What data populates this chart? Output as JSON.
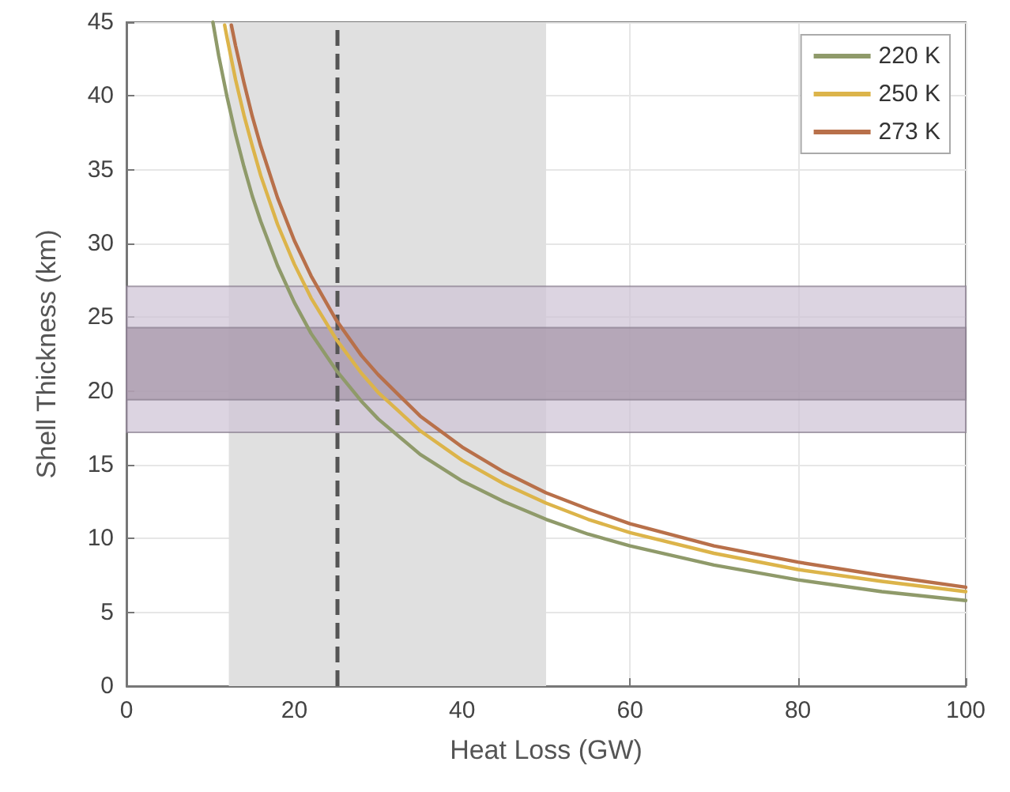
{
  "chart_data": {
    "type": "line",
    "xlabel": "Heat Loss (GW)",
    "ylabel": "Shell Thickness (km)",
    "xlim": [
      0,
      100
    ],
    "xticks": [
      0,
      20,
      40,
      60,
      80,
      100
    ],
    "ylim": [
      0,
      45
    ],
    "yticks": [
      0,
      5,
      10,
      15,
      20,
      25,
      30,
      35,
      40,
      45
    ],
    "grid": true,
    "legend": "top right",
    "marker": "none",
    "line_style": "solid",
    "series": [
      {
        "name": "220 K",
        "color": "#8f9a6a",
        "x": [
          10.3,
          11,
          12,
          13,
          14,
          15,
          16,
          18,
          20,
          22,
          25,
          28,
          30,
          35,
          40,
          45,
          50,
          55,
          60,
          70,
          80,
          90,
          100
        ],
        "values": [
          45.0,
          42.7,
          39.9,
          37.4,
          35.2,
          33.2,
          31.5,
          28.5,
          26.0,
          23.9,
          21.4,
          19.3,
          18.1,
          15.7,
          13.9,
          12.5,
          11.3,
          10.3,
          9.5,
          8.2,
          7.2,
          6.4,
          5.8
        ]
      },
      {
        "name": "250 K",
        "color": "#dcb44a",
        "x": [
          11.7,
          12,
          13,
          14,
          15,
          16,
          18,
          20,
          22,
          25,
          28,
          30,
          35,
          40,
          45,
          50,
          55,
          60,
          70,
          80,
          90,
          100
        ],
        "values": [
          44.8,
          43.9,
          41.1,
          38.7,
          36.6,
          34.6,
          31.3,
          28.6,
          26.3,
          23.5,
          21.2,
          19.9,
          17.3,
          15.3,
          13.7,
          12.4,
          11.3,
          10.4,
          9.0,
          7.9,
          7.1,
          6.4
        ]
      },
      {
        "name": "273 K",
        "color": "#b8704a",
        "x": [
          12.5,
          13,
          14,
          15,
          16,
          18,
          20,
          22,
          25,
          28,
          30,
          35,
          40,
          45,
          50,
          55,
          60,
          70,
          80,
          90,
          100
        ],
        "values": [
          44.8,
          43.4,
          40.9,
          38.6,
          36.6,
          33.1,
          30.2,
          27.8,
          24.8,
          22.4,
          21.1,
          18.3,
          16.2,
          14.5,
          13.1,
          12.0,
          11.0,
          9.5,
          8.4,
          7.5,
          6.7
        ]
      }
    ],
    "bands": [
      {
        "axis": "x",
        "from": 12.2,
        "to": 50,
        "color": "#e0e0e0"
      },
      {
        "axis": "y",
        "from": 17.2,
        "to": 27.1,
        "color": "#cfc3d5"
      },
      {
        "axis": "y",
        "from": 19.4,
        "to": 24.3,
        "color": "#a696a8"
      }
    ],
    "ref_lines": [
      {
        "axis": "x",
        "value": 25,
        "color": "#555555",
        "line_style": "dashed"
      }
    ]
  }
}
